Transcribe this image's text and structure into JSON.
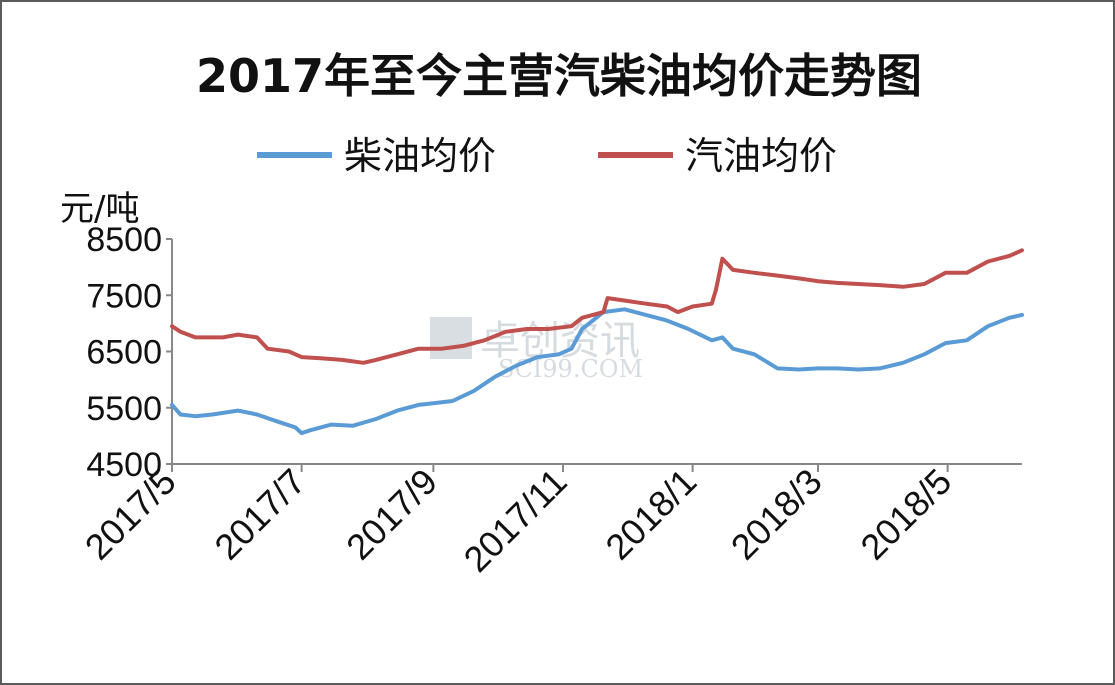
{
  "chart_data": {
    "type": "line",
    "title": "2017年至今主营汽柴油均价走势图",
    "ylabel": "元/吨",
    "ylim": [
      4500,
      8500
    ],
    "y_ticks": [
      "8500",
      "7500",
      "6500",
      "5500",
      "4500"
    ],
    "x_tick_labels": [
      "2017/5",
      "2017/7",
      "2017/9",
      "2017/11",
      "2018/1",
      "2018/3",
      "2018/5"
    ],
    "x_range": [
      "2017-05-01",
      "2018-06-05"
    ],
    "legend": {
      "position": "top"
    },
    "watermark": {
      "text": "卓创资讯",
      "sub": "SCI99.COM"
    },
    "series": [
      {
        "name": "柴油均价",
        "color": "#5b9bd5",
        "points": [
          [
            "2017-05-01",
            5550
          ],
          [
            "2017-05-05",
            5380
          ],
          [
            "2017-05-12",
            5350
          ],
          [
            "2017-05-20",
            5380
          ],
          [
            "2017-06-01",
            5450
          ],
          [
            "2017-06-10",
            5380
          ],
          [
            "2017-06-20",
            5250
          ],
          [
            "2017-06-28",
            5150
          ],
          [
            "2017-07-01",
            5050
          ],
          [
            "2017-07-05",
            5100
          ],
          [
            "2017-07-15",
            5200
          ],
          [
            "2017-07-25",
            5180
          ],
          [
            "2017-08-05",
            5300
          ],
          [
            "2017-08-15",
            5450
          ],
          [
            "2017-08-25",
            5550
          ],
          [
            "2017-09-01",
            5580
          ],
          [
            "2017-09-10",
            5620
          ],
          [
            "2017-09-20",
            5800
          ],
          [
            "2017-09-30",
            6050
          ],
          [
            "2017-10-10",
            6250
          ],
          [
            "2017-10-20",
            6400
          ],
          [
            "2017-10-30",
            6450
          ],
          [
            "2017-11-05",
            6550
          ],
          [
            "2017-11-10",
            6900
          ],
          [
            "2017-11-15",
            7050
          ],
          [
            "2017-11-20",
            7200
          ],
          [
            "2017-11-30",
            7250
          ],
          [
            "2017-12-10",
            7150
          ],
          [
            "2017-12-20",
            7050
          ],
          [
            "2017-12-30",
            6900
          ],
          [
            "2018-01-10",
            6700
          ],
          [
            "2018-01-15",
            6750
          ],
          [
            "2018-01-20",
            6550
          ],
          [
            "2018-01-30",
            6450
          ],
          [
            "2018-02-10",
            6200
          ],
          [
            "2018-02-20",
            6180
          ],
          [
            "2018-03-01",
            6200
          ],
          [
            "2018-03-10",
            6200
          ],
          [
            "2018-03-20",
            6180
          ],
          [
            "2018-03-30",
            6200
          ],
          [
            "2018-04-10",
            6300
          ],
          [
            "2018-04-20",
            6450
          ],
          [
            "2018-04-30",
            6650
          ],
          [
            "2018-05-10",
            6700
          ],
          [
            "2018-05-20",
            6950
          ],
          [
            "2018-05-30",
            7100
          ],
          [
            "2018-06-05",
            7150
          ]
        ]
      },
      {
        "name": "汽油均价",
        "color": "#c0504d",
        "points": [
          [
            "2017-05-01",
            6950
          ],
          [
            "2017-05-05",
            6850
          ],
          [
            "2017-05-12",
            6750
          ],
          [
            "2017-05-25",
            6750
          ],
          [
            "2017-06-01",
            6800
          ],
          [
            "2017-06-10",
            6750
          ],
          [
            "2017-06-15",
            6550
          ],
          [
            "2017-06-25",
            6500
          ],
          [
            "2017-07-01",
            6400
          ],
          [
            "2017-07-10",
            6380
          ],
          [
            "2017-07-20",
            6350
          ],
          [
            "2017-07-30",
            6300
          ],
          [
            "2017-08-05",
            6350
          ],
          [
            "2017-08-15",
            6450
          ],
          [
            "2017-08-25",
            6550
          ],
          [
            "2017-09-05",
            6550
          ],
          [
            "2017-09-15",
            6600
          ],
          [
            "2017-09-25",
            6700
          ],
          [
            "2017-10-05",
            6850
          ],
          [
            "2017-10-15",
            6900
          ],
          [
            "2017-10-25",
            6900
          ],
          [
            "2017-11-05",
            6950
          ],
          [
            "2017-11-10",
            7100
          ],
          [
            "2017-11-20",
            7200
          ],
          [
            "2017-11-22",
            7450
          ],
          [
            "2017-12-01",
            7400
          ],
          [
            "2017-12-10",
            7350
          ],
          [
            "2017-12-20",
            7300
          ],
          [
            "2017-12-25",
            7200
          ],
          [
            "2018-01-01",
            7300
          ],
          [
            "2018-01-10",
            7350
          ],
          [
            "2018-01-12",
            7600
          ],
          [
            "2018-01-15",
            8150
          ],
          [
            "2018-01-20",
            7950
          ],
          [
            "2018-01-30",
            7900
          ],
          [
            "2018-02-10",
            7850
          ],
          [
            "2018-02-20",
            7800
          ],
          [
            "2018-03-01",
            7750
          ],
          [
            "2018-03-10",
            7720
          ],
          [
            "2018-03-20",
            7700
          ],
          [
            "2018-03-30",
            7680
          ],
          [
            "2018-04-10",
            7650
          ],
          [
            "2018-04-20",
            7700
          ],
          [
            "2018-04-30",
            7900
          ],
          [
            "2018-05-10",
            7900
          ],
          [
            "2018-05-20",
            8100
          ],
          [
            "2018-05-30",
            8200
          ],
          [
            "2018-06-05",
            8300
          ]
        ]
      }
    ]
  }
}
